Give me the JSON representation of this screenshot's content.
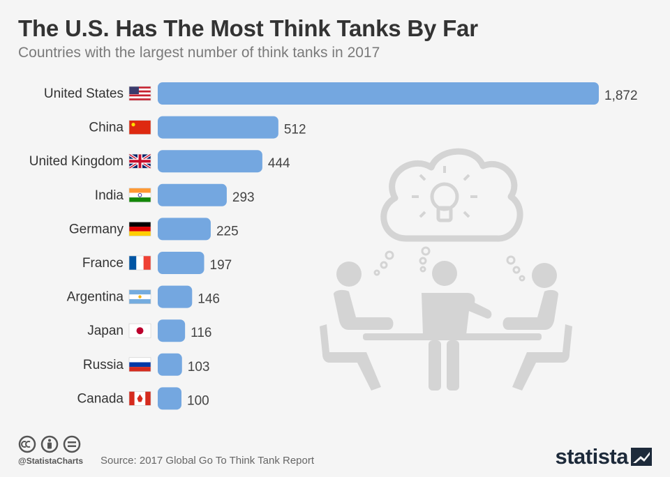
{
  "header": {
    "title": "The U.S. Has The Most Think Tanks By Far",
    "subtitle": "Countries with the largest number of think tanks in 2017"
  },
  "colors": {
    "bar": "#74a7e0",
    "label": "#333333",
    "value": "#444444",
    "illustration": "#d4d4d4"
  },
  "chart_data": {
    "type": "bar",
    "orientation": "horizontal",
    "title": "The U.S. Has The Most Think Tanks By Far",
    "subtitle": "Countries with the largest number of think tanks in 2017",
    "categories": [
      "United States",
      "China",
      "United Kingdom",
      "India",
      "Germany",
      "France",
      "Argentina",
      "Japan",
      "Russia",
      "Canada"
    ],
    "values": [
      1872,
      512,
      444,
      293,
      225,
      197,
      146,
      116,
      103,
      100
    ],
    "value_labels": [
      "1,872",
      "512",
      "444",
      "293",
      "225",
      "197",
      "146",
      "116",
      "103",
      "100"
    ],
    "flag_icons": [
      "us-flag-icon",
      "china-flag-icon",
      "uk-flag-icon",
      "india-flag-icon",
      "germany-flag-icon",
      "france-flag-icon",
      "argentina-flag-icon",
      "japan-flag-icon",
      "russia-flag-icon",
      "canada-flag-icon"
    ],
    "xlim": [
      0,
      1872
    ],
    "grid": false,
    "legend": "none"
  },
  "footer": {
    "handle": "@StatistaCharts",
    "source": "Source: 2017 Global Go To Think Tank Report",
    "brand": "statista"
  }
}
